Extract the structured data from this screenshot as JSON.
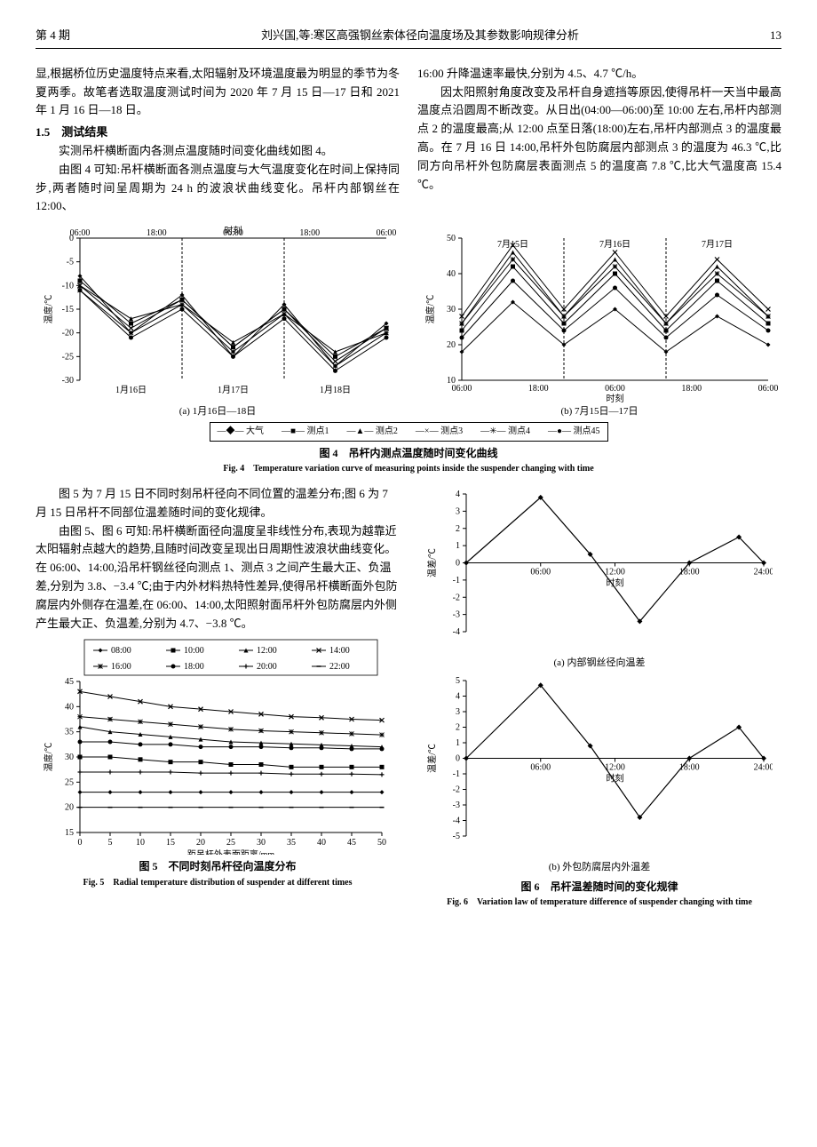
{
  "header": {
    "issue": "第 4 期",
    "title": "刘兴国,等:寒区高强钢丝索体径向温度场及其参数影响规律分析",
    "page": "13"
  },
  "p1": "显,根据桥位历史温度特点来看,太阳辐射及环境温度最为明显的季节为冬夏两季。故笔者选取温度测试时间为 2020 年 7 月 15 日—17 日和 2021 年 1 月 16 日—18 日。",
  "s15": "1.5　测试结果",
  "p2": "实测吊杆横断面内各测点温度随时间变化曲线如图 4。",
  "p3": "由图 4 可知:吊杆横断面各测点温度与大气温度变化在时间上保持同步,两者随时间呈周期为 24 h 的波浪状曲线变化。吊杆内部钢丝在 12:00、",
  "p4": "16:00 升降温速率最快,分别为 4.5、4.7 ℃/h。",
  "p5": "因太阳照射角度改变及吊杆自身遮挡等原因,使得吊杆一天当中最高温度点沿圆周不断改变。从日出(04:00—06:00)至 10:00 左右,吊杆内部测点 2 的温度最高;从 12:00 点至日落(18:00)左右,吊杆内部测点 3 的温度最高。在 7 月 16 日 14:00,吊杆外包防腐层内部测点 3 的温度为 46.3 ℃,比同方向吊杆外包防腐层表面测点 5 的温度高 7.8 ℃,比大气温度高 15.4 ℃。",
  "fig4": {
    "cn": "图 4　吊杆内测点温度随时间变化曲线",
    "en": "Fig. 4　Temperature variation curve of measuring points inside the suspender changing with time",
    "subA": "(a) 1月16日—18日",
    "subB": "(b) 7月15日—17日",
    "legend": [
      "大气",
      "测点1",
      "测点2",
      "测点3",
      "测点4",
      "测点45"
    ],
    "legendMarkers": [
      "diamond",
      "square",
      "triangle",
      "x",
      "star",
      "dot"
    ],
    "a": {
      "xlabel": "时刻",
      "ylabel": "温度/℃",
      "xticks": [
        "06:00",
        "18:00",
        "06:00",
        "18:00",
        "06:00"
      ],
      "bottomDates": [
        "1月16日",
        "1月17日",
        "1月18日"
      ],
      "yticks": [
        0,
        -5,
        -10,
        -15,
        -20,
        -25,
        -30
      ],
      "ylim": [
        -30,
        0
      ],
      "series": {
        "atm": [
          -8,
          -20,
          -12,
          -25,
          -14,
          -27,
          -18
        ],
        "p1": [
          -9,
          -18,
          -13,
          -23,
          -15,
          -25,
          -19
        ],
        "p2": [
          -10,
          -17,
          -14,
          -22,
          -16,
          -24,
          -20
        ],
        "p3": [
          -10,
          -19,
          -13,
          -23,
          -15,
          -26,
          -19
        ],
        "p4": [
          -11,
          -20,
          -14,
          -24,
          -16,
          -27,
          -20
        ],
        "p45": [
          -11,
          -21,
          -15,
          -25,
          -17,
          -28,
          -21
        ]
      },
      "color": "#000000"
    },
    "b": {
      "xlabel": "时刻",
      "ylabel": "温度/℃",
      "xticks": [
        "06:00",
        "18:00",
        "06:00",
        "18:00",
        "06:00"
      ],
      "topDates": [
        "7月15日",
        "7月16日",
        "7月17日"
      ],
      "yticks": [
        10,
        20,
        30,
        40,
        50
      ],
      "ylim": [
        10,
        50
      ],
      "series": {
        "atm": [
          18,
          32,
          20,
          30,
          18,
          28,
          20
        ],
        "p1": [
          24,
          42,
          26,
          40,
          24,
          38,
          26
        ],
        "p2": [
          26,
          46,
          28,
          44,
          26,
          42,
          28
        ],
        "p3": [
          28,
          48,
          30,
          46,
          28,
          44,
          30
        ],
        "p4": [
          26,
          44,
          28,
          42,
          26,
          40,
          28
        ],
        "p45": [
          22,
          38,
          24,
          36,
          22,
          34,
          24
        ]
      },
      "color": "#000000"
    }
  },
  "p6": "图 5 为 7 月 15 日不同时刻吊杆径向不同位置的温差分布;图 6 为 7 月 15 日吊杆不同部位温差随时间的变化规律。",
  "p7": "由图 5、图 6 可知:吊杆横断面径向温度呈非线性分布,表现为越靠近太阳辐射点越大的趋势,且随时间改变呈现出日周期性波浪状曲线变化。在 06:00、14:00,沿吊杆钢丝径向测点 1、测点 3 之间产生最大正、负温差,分别为 3.8、−3.4 ℃;由于内外材料热特性差异,使得吊杆横断面外包防腐层内外侧存在温差,在 06:00、14:00,太阳照射面吊杆外包防腐层内外侧产生最大正、负温差,分别为 4.7、−3.8 ℃。",
  "fig5": {
    "cn": "图 5　不同时刻吊杆径向温度分布",
    "en": "Fig. 5　Radial temperature distribution of suspender at different times",
    "xlabel": "距吊杆外表面距离/mm",
    "ylabel": "温度/℃",
    "xticks": [
      0,
      5,
      10,
      15,
      20,
      25,
      30,
      35,
      40,
      45,
      50
    ],
    "yticks": [
      15,
      20,
      25,
      30,
      35,
      40,
      45
    ],
    "xlim": [
      0,
      50
    ],
    "ylim": [
      15,
      45
    ],
    "legend": [
      "08:00",
      "10:00",
      "12:00",
      "14:00",
      "16:00",
      "18:00",
      "20:00",
      "22:00"
    ],
    "legendMarkers": [
      "diamond",
      "square",
      "triangle",
      "x",
      "star",
      "dot",
      "plus",
      "dash"
    ],
    "series": {
      "08:00": [
        23,
        23,
        23,
        23,
        23,
        23,
        23,
        23,
        23,
        23,
        23
      ],
      "10:00": [
        30,
        30,
        29.5,
        29,
        29,
        28.5,
        28.5,
        28,
        28,
        28,
        28
      ],
      "12:00": [
        36,
        35,
        34.5,
        34,
        33.5,
        33,
        32.8,
        32.6,
        32.4,
        32.2,
        32
      ],
      "14:00": [
        43,
        42,
        41,
        40,
        39.5,
        39,
        38.5,
        38,
        37.8,
        37.5,
        37.3
      ],
      "16:00": [
        38,
        37.5,
        37,
        36.5,
        36,
        35.5,
        35.2,
        35,
        34.8,
        34.6,
        34.4
      ],
      "18:00": [
        33,
        33,
        32.5,
        32.5,
        32,
        32,
        32,
        31.8,
        31.8,
        31.6,
        31.6
      ],
      "20:00": [
        27,
        27,
        27,
        27,
        26.8,
        26.8,
        26.8,
        26.6,
        26.6,
        26.6,
        26.5
      ],
      "22:00": [
        20,
        20,
        20,
        20,
        20,
        20,
        20,
        20,
        20,
        20,
        20
      ]
    },
    "color": "#000000"
  },
  "fig6": {
    "cn": "图 6　吊杆温差随时间的变化规律",
    "en": "Fig. 6　Variation law of temperature difference of suspender changing with time",
    "subA": "(a) 内部钢丝径向温差",
    "subB": "(b) 外包防腐层内外温差",
    "a": {
      "xlabel": "时刻",
      "ylabel": "温差/℃",
      "xticks": [
        "06:00",
        "12:00",
        "18:00",
        "24:00"
      ],
      "yticks": [
        -4,
        -3,
        -2,
        -1,
        0,
        1,
        2,
        3,
        4
      ],
      "ylim": [
        -4,
        4
      ],
      "data": [
        [
          0,
          0
        ],
        [
          6,
          3.8
        ],
        [
          10,
          0.5
        ],
        [
          14,
          -3.4
        ],
        [
          18,
          0
        ],
        [
          22,
          1.5
        ],
        [
          24,
          0
        ]
      ],
      "color": "#000000",
      "marker": "diamond"
    },
    "b": {
      "xlabel": "时刻",
      "ylabel": "温差/℃",
      "xticks": [
        "06:00",
        "12:00",
        "18:00",
        "24:00"
      ],
      "yticks": [
        -5,
        -4,
        -3,
        -2,
        -1,
        0,
        1,
        2,
        3,
        4,
        5
      ],
      "ylim": [
        -5,
        5
      ],
      "data": [
        [
          0,
          0
        ],
        [
          6,
          4.7
        ],
        [
          10,
          0.8
        ],
        [
          14,
          -3.8
        ],
        [
          18,
          0
        ],
        [
          22,
          2
        ],
        [
          24,
          0
        ]
      ],
      "color": "#000000",
      "marker": "diamond"
    }
  }
}
